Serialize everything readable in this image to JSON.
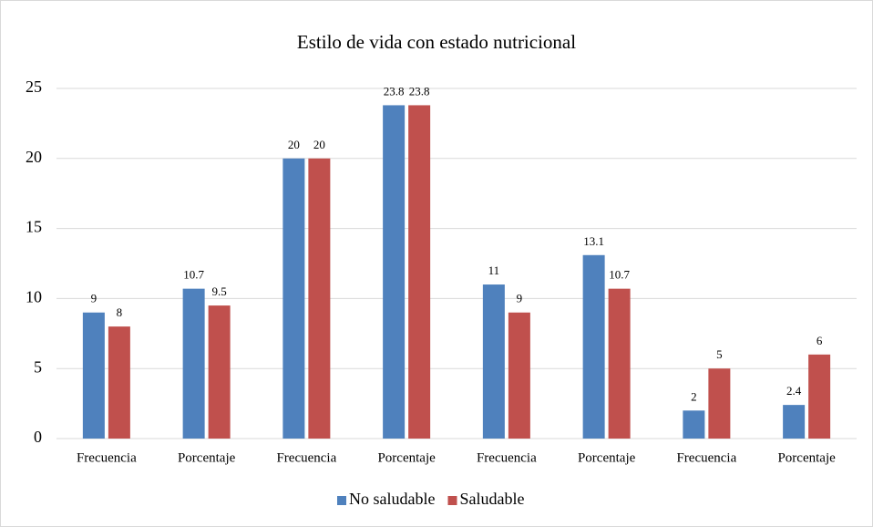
{
  "chart_data": {
    "type": "bar",
    "title": "Estilo de vida con estado nutricional",
    "categories": [
      "Frecuencia",
      "Porcentaje",
      "Frecuencia",
      "Porcentaje",
      "Frecuencia",
      "Porcentaje",
      "Frecuencia",
      "Porcentaje"
    ],
    "series": [
      {
        "name": "No saludable",
        "color": "#4f81bd",
        "values": [
          9,
          10.7,
          20,
          23.8,
          11,
          13.1,
          2,
          2.4
        ]
      },
      {
        "name": "Saludable",
        "color": "#c0504d",
        "values": [
          8,
          9.5,
          20,
          23.8,
          9,
          10.7,
          5,
          6
        ]
      }
    ],
    "ylim": [
      0,
      25
    ],
    "yticks": [
      0,
      5,
      10,
      15,
      20,
      25
    ],
    "grid": true,
    "legend": "bottom"
  }
}
